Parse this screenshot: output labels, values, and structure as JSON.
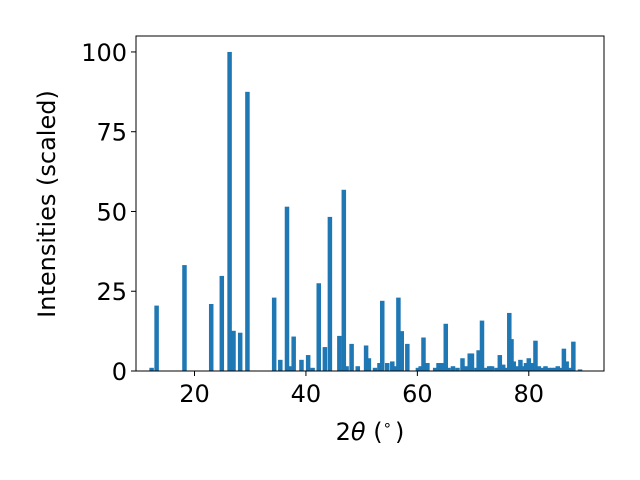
{
  "chart_data": {
    "type": "bar",
    "xlabel_prefix": "2",
    "xlabel_theta": "θ",
    "xlabel_suffix": " (",
    "xlabel_degree": "∘",
    "xlabel_close": ")",
    "ylabel": "Intensities (scaled)",
    "xlim": [
      9.5,
      93.5
    ],
    "ylim": [
      0,
      105
    ],
    "xticks": [
      20,
      40,
      60,
      80
    ],
    "yticks": [
      0,
      25,
      50,
      75,
      100
    ],
    "bar_color": "#1f77b4",
    "grid": false,
    "legend": "none",
    "x": [
      12.3,
      13.2,
      18.2,
      23.0,
      24.9,
      26.3,
      27.0,
      28.2,
      29.5,
      34.3,
      35.4,
      36.6,
      37.0,
      37.8,
      39.2,
      40.4,
      41.2,
      42.3,
      43.4,
      44.3,
      46.0,
      46.8,
      47.3,
      48.2,
      49.3,
      50.8,
      51.3,
      52.4,
      53.2,
      53.7,
      54.6,
      55.5,
      56.2,
      56.6,
      57.2,
      58.2,
      60.1,
      60.6,
      61.1,
      61.8,
      63.2,
      63.8,
      64.4,
      65.1,
      65.6,
      66.4,
      67.2,
      68.1,
      68.8,
      69.4,
      69.8,
      70.6,
      71.0,
      71.6,
      72.3,
      72.9,
      73.4,
      74.2,
      74.8,
      75.4,
      76.1,
      76.5,
      76.9,
      77.3,
      77.9,
      78.5,
      79.1,
      79.5,
      80.0,
      80.5,
      81.2,
      81.8,
      82.4,
      83.0,
      83.6,
      84.2,
      84.7,
      85.2,
      85.7,
      86.3,
      86.8,
      87.4,
      88.0,
      89.2
    ],
    "values": [
      1,
      20.5,
      33.2,
      21,
      29.8,
      100,
      12.6,
      12,
      87.5,
      23,
      3.5,
      51.5,
      1.5,
      10.8,
      3.5,
      5,
      1,
      27.5,
      7.5,
      48.3,
      11,
      56.8,
      1.5,
      8.5,
      1.5,
      8,
      4,
      1,
      2.5,
      22,
      2.5,
      3,
      1.5,
      23,
      12.5,
      8.5,
      1,
      1.5,
      10.5,
      2.5,
      1,
      2.5,
      2.5,
      14.8,
      1,
      1.5,
      1,
      4,
      1.5,
      5.5,
      5.5,
      1,
      6.5,
      15.8,
      1,
      1.5,
      1.5,
      1,
      5,
      2,
      1,
      18.2,
      10,
      3,
      1.5,
      3.5,
      1.5,
      2.5,
      4,
      2.5,
      9.5,
      1.5,
      1,
      1.5,
      1,
      1,
      1,
      1.5,
      1,
      7,
      3,
      1,
      9.2,
      0.5
    ]
  }
}
